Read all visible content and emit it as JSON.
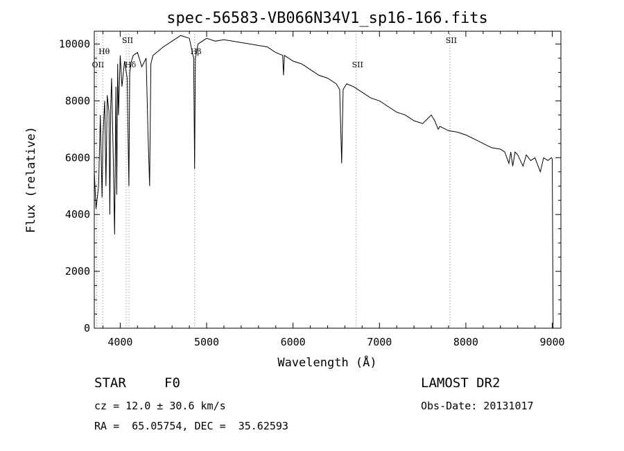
{
  "chart_data": {
    "type": "line",
    "title": "spec-56583-VB066N34V1_sp16-166.fits",
    "xlabel": "Wavelength (Å)",
    "ylabel": "Flux (relative)",
    "xlim": [
      3700,
      9100
    ],
    "ylim": [
      0,
      10450
    ],
    "xticks": [
      4000,
      5000,
      6000,
      7000,
      8000,
      9000
    ],
    "yticks": [
      0,
      2000,
      4000,
      6000,
      8000,
      10000
    ],
    "series": [
      {
        "x": [
          3700,
          3720,
          3735,
          3750,
          3770,
          3790,
          3800,
          3820,
          3835,
          3850,
          3870,
          3880,
          3890,
          3900,
          3920,
          3935,
          3950,
          3960,
          3970,
          3980,
          4000,
          4020,
          4050,
          4080,
          4100,
          4110,
          4130,
          4150,
          4200,
          4250,
          4300,
          4320,
          4340,
          4355,
          4380,
          4420,
          4500,
          4600,
          4700,
          4800,
          4850,
          4861,
          4870,
          4900,
          5000,
          5100,
          5200,
          5300,
          5400,
          5500,
          5600,
          5700,
          5800,
          5880,
          5890,
          5900,
          6000,
          6100,
          6200,
          6300,
          6400,
          6500,
          6540,
          6563,
          6580,
          6620,
          6700,
          6800,
          6900,
          7000,
          7100,
          7200,
          7300,
          7400,
          7500,
          7600,
          7640,
          7680,
          7700,
          7800,
          7900,
          8000,
          8100,
          8200,
          8300,
          8400,
          8450,
          8498,
          8520,
          8542,
          8570,
          8600,
          8662,
          8700,
          8750,
          8800,
          8862,
          8900,
          8950,
          8990,
          9000,
          9010
        ],
        "y": [
          5500,
          4200,
          4600,
          5000,
          7500,
          4600,
          6800,
          8000,
          5000,
          8200,
          7600,
          4000,
          7800,
          8800,
          6000,
          3300,
          8500,
          4700,
          9300,
          7500,
          9600,
          8500,
          9400,
          8800,
          5000,
          9000,
          9400,
          9600,
          9700,
          9200,
          9500,
          7000,
          5000,
          9300,
          9600,
          9700,
          9900,
          10100,
          10300,
          10200,
          9500,
          5600,
          9500,
          10000,
          10200,
          10100,
          10150,
          10100,
          10050,
          10000,
          9950,
          9900,
          9700,
          9600,
          8900,
          9600,
          9400,
          9300,
          9100,
          8900,
          8800,
          8600,
          8400,
          5800,
          8400,
          8600,
          8500,
          8300,
          8100,
          8000,
          7800,
          7600,
          7500,
          7300,
          7200,
          7500,
          7300,
          7000,
          7100,
          6950,
          6900,
          6800,
          6650,
          6500,
          6350,
          6300,
          6200,
          5800,
          6200,
          5700,
          6200,
          6100,
          5700,
          6100,
          5900,
          6000,
          5500,
          6000,
          5900,
          6000,
          5950,
          0
        ]
      }
    ],
    "line_markers": [
      {
        "label": "OII",
        "x": 3727,
        "level": "low"
      },
      {
        "label": "Hθ",
        "x": 3798,
        "level": "high"
      },
      {
        "label": "SII",
        "x": 4069,
        "level": "top"
      },
      {
        "label": "Hδ",
        "x": 4102,
        "level": "mid"
      },
      {
        "label": "Hβ",
        "x": 4861,
        "level": "high"
      },
      {
        "label": "SII",
        "x": 6731,
        "level": "low"
      },
      {
        "label": "SII",
        "x": 7815,
        "level": "top"
      }
    ]
  },
  "info": {
    "object_type": "STAR",
    "subclass": "F0",
    "survey": "LAMOST DR2",
    "cz": "cz = 12.0 ± 30.6 km/s",
    "obs_date": "Obs-Date: 20131017",
    "coords": "RA =  65.05754, DEC =  35.62593"
  }
}
